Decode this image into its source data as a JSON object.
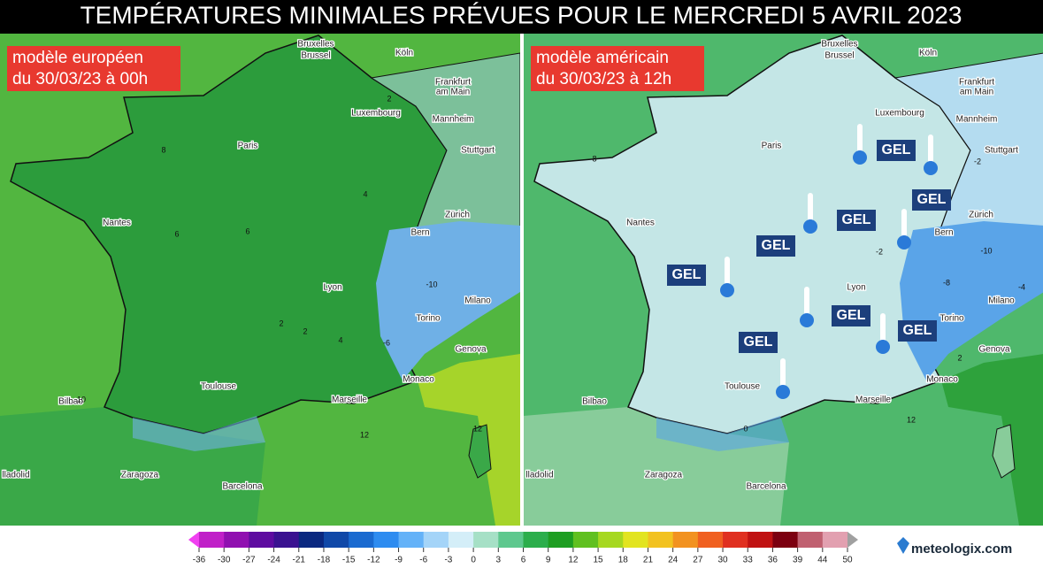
{
  "title": "TEMPÉRATURES MINIMALES PRÉVUES POUR LE MERCREDI 5 AVRIL 2023",
  "panels": [
    {
      "label": [
        "modèle européen",
        "du 30/03/23 à 00h"
      ],
      "cities": [
        "Bruxelles",
        "Brussel",
        "Köln",
        "Frankfurt",
        "am Main",
        "Luxembourg",
        "Mannheim",
        "Paris",
        "Stuttgart",
        "Nantes",
        "Zürich",
        "Bern",
        "Lyon",
        "Milano",
        "Torino",
        "Genova",
        "Monaco",
        "Toulouse",
        "Marseille",
        "Bilbao",
        "lladolid",
        "Zaragoza",
        "Barcelona"
      ],
      "contour_labels": [
        8,
        6,
        6,
        4,
        2,
        2,
        4,
        -10,
        -6,
        10,
        12,
        12,
        2
      ]
    },
    {
      "label": [
        "modèle américain",
        "du 30/03/23 à 12h"
      ],
      "cities": [
        "Bruxelles",
        "Brussel",
        "Köln",
        "Frankfurt",
        "am Main",
        "Luxembourg",
        "Mannheim",
        "Paris",
        "Stuttgart",
        "Nantes",
        "Zürich",
        "Bern",
        "Lyon",
        "Milano",
        "Torino",
        "Genova",
        "Monaco",
        "Toulouse",
        "Marseille",
        "Bilbao",
        "lladolid",
        "Zaragoza",
        "Barcelona"
      ],
      "contour_labels": [
        -8,
        -2,
        -2,
        -4,
        -10,
        0,
        2,
        8,
        12
      ],
      "frost_labels": [
        "GEL",
        "GEL",
        "GEL",
        "GEL",
        "GEL",
        "GEL",
        "GEL",
        "GEL"
      ]
    }
  ],
  "colorbar": {
    "ticks": [
      -36,
      -30,
      -27,
      -24,
      -21,
      -18,
      -15,
      -12,
      -9,
      -6,
      -3,
      0,
      3,
      6,
      9,
      12,
      15,
      18,
      21,
      24,
      27,
      30,
      33,
      36,
      39,
      44,
      50
    ]
  },
  "brand": "meteologix.com"
}
